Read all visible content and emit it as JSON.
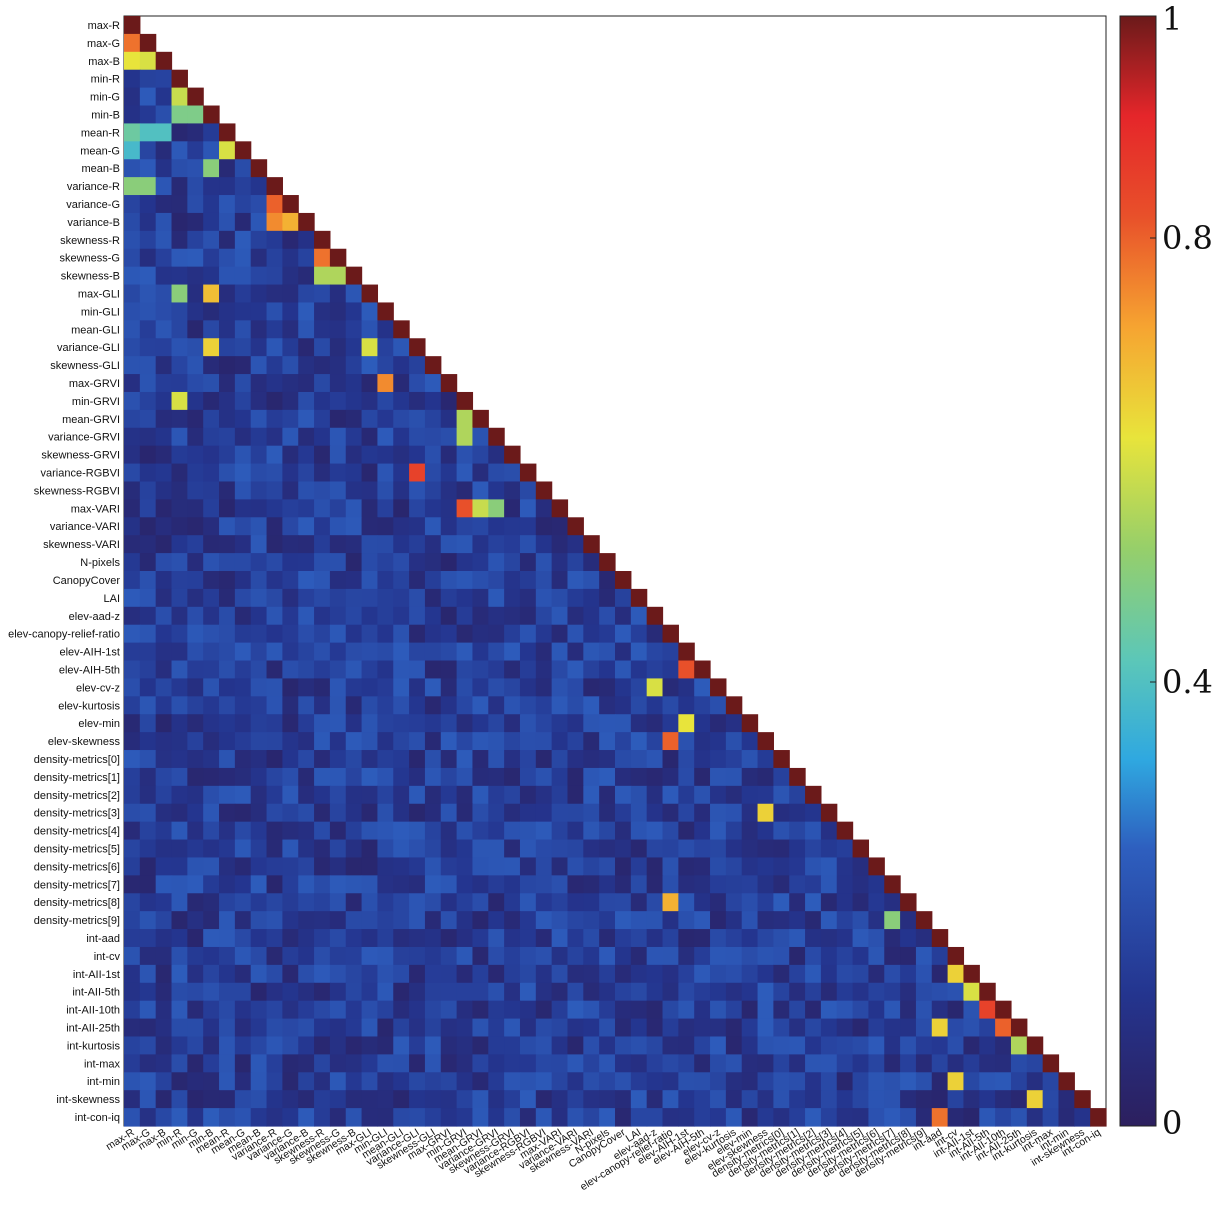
{
  "chart_data": {
    "type": "heatmap",
    "title": "",
    "xlabel": "",
    "ylabel": "",
    "variables": [
      "max-R",
      "max-G",
      "max-B",
      "min-R",
      "min-G",
      "min-B",
      "mean-R",
      "mean-G",
      "mean-B",
      "variance-R",
      "variance-G",
      "variance-B",
      "skewness-R",
      "skewness-G",
      "skewness-B",
      "max-GLI",
      "min-GLI",
      "mean-GLI",
      "variance-GLI",
      "skewness-GLI",
      "max-GRVI",
      "min-GRVI",
      "mean-GRVI",
      "variance-GRVI",
      "skewness-GRVI",
      "variance-RGBVI",
      "skewness-RGBVI",
      "max-VARI",
      "variance-VARI",
      "skewness-VARI",
      "N-pixels",
      "CanopyCover",
      "LAI",
      "elev-aad-z",
      "elev-canopy-relief-ratio",
      "elev-AIH-1st",
      "elev-AIH-5th",
      "elev-cv-z",
      "elev-kurtosis",
      "elev-min",
      "elev-skewness",
      "density-metrics[0]",
      "density-metrics[1]",
      "density-metrics[2]",
      "density-metrics[3]",
      "density-metrics[4]",
      "density-metrics[5]",
      "density-metrics[6]",
      "density-metrics[7]",
      "density-metrics[8]",
      "density-metrics[9]",
      "int-aad",
      "int-cv",
      "int-AII-1st",
      "int-AII-5th",
      "int-AII-10th",
      "int-AII-25th",
      "int-kurtosis",
      "int-max",
      "int-min",
      "int-skewness",
      "int-con-iq"
    ],
    "matrix_shape": "lower-triangular",
    "diagonal_value": 1,
    "notable_values": [
      {
        "row": "max-G",
        "col": "max-R",
        "value": 0.78
      },
      {
        "row": "max-B",
        "col": "max-R",
        "value": 0.62
      },
      {
        "row": "max-B",
        "col": "max-G",
        "value": 0.6
      },
      {
        "row": "min-G",
        "col": "min-R",
        "value": 0.58
      },
      {
        "row": "min-B",
        "col": "min-R",
        "value": 0.48
      },
      {
        "row": "min-B",
        "col": "min-G",
        "value": 0.48
      },
      {
        "row": "mean-R",
        "col": "max-R",
        "value": 0.45
      },
      {
        "row": "mean-R",
        "col": "max-G",
        "value": 0.4
      },
      {
        "row": "mean-R",
        "col": "max-B",
        "value": 0.4
      },
      {
        "row": "mean-G",
        "col": "max-R",
        "value": 0.38
      },
      {
        "row": "mean-G",
        "col": "mean-R",
        "value": 0.6
      },
      {
        "row": "mean-B",
        "col": "min-B",
        "value": 0.5
      },
      {
        "row": "variance-R",
        "col": "max-R",
        "value": 0.5
      },
      {
        "row": "variance-R",
        "col": "max-G",
        "value": 0.5
      },
      {
        "row": "variance-G",
        "col": "variance-R",
        "value": 0.8
      },
      {
        "row": "variance-B",
        "col": "variance-R",
        "value": 0.75
      },
      {
        "row": "variance-B",
        "col": "variance-G",
        "value": 0.7
      },
      {
        "row": "skewness-G",
        "col": "skewness-R",
        "value": 0.78
      },
      {
        "row": "skewness-B",
        "col": "skewness-R",
        "value": 0.55
      },
      {
        "row": "skewness-B",
        "col": "skewness-G",
        "value": 0.55
      },
      {
        "row": "max-GLI",
        "col": "min-B",
        "value": 0.68
      },
      {
        "row": "max-GLI",
        "col": "min-R",
        "value": 0.5
      },
      {
        "row": "variance-GLI",
        "col": "max-GLI",
        "value": 0.6
      },
      {
        "row": "variance-GLI",
        "col": "min-B",
        "value": 0.65
      },
      {
        "row": "max-GRVI",
        "col": "min-GLI",
        "value": 0.75
      },
      {
        "row": "min-GRVI",
        "col": "min-R",
        "value": 0.6
      },
      {
        "row": "mean-GRVI",
        "col": "min-GRVI",
        "value": 0.55
      },
      {
        "row": "variance-GRVI",
        "col": "min-GRVI",
        "value": 0.55
      },
      {
        "row": "variance-RGBVI",
        "col": "variance-GLI",
        "value": 0.85
      },
      {
        "row": "max-VARI",
        "col": "min-GRVI",
        "value": 0.82
      },
      {
        "row": "max-VARI",
        "col": "mean-GRVI",
        "value": 0.58
      },
      {
        "row": "max-VARI",
        "col": "variance-GRVI",
        "value": 0.5
      },
      {
        "row": "elev-AIH-5th",
        "col": "elev-AIH-1st",
        "value": 0.82
      },
      {
        "row": "elev-cv-z",
        "col": "elev-aad-z",
        "value": 0.6
      },
      {
        "row": "elev-min",
        "col": "elev-AIH-1st",
        "value": 0.62
      },
      {
        "row": "elev-skewness",
        "col": "elev-canopy-relief-ratio",
        "value": 0.8
      },
      {
        "row": "density-metrics[3]",
        "col": "elev-skewness",
        "value": 0.65
      },
      {
        "row": "density-metrics[8]",
        "col": "elev-canopy-relief-ratio",
        "value": 0.7
      },
      {
        "row": "density-metrics[9]",
        "col": "density-metrics[7]",
        "value": 0.5
      },
      {
        "row": "int-AII-1st",
        "col": "int-cv",
        "value": 0.65
      },
      {
        "row": "int-AII-5th",
        "col": "int-AII-1st",
        "value": 0.6
      },
      {
        "row": "int-AII-10th",
        "col": "int-AII-5th",
        "value": 0.85
      },
      {
        "row": "int-AII-25th",
        "col": "int-AII-10th",
        "value": 0.8
      },
      {
        "row": "int-AII-25th",
        "col": "int-aad",
        "value": 0.65
      },
      {
        "row": "int-kurtosis",
        "col": "int-AII-25th",
        "value": 0.55
      },
      {
        "row": "int-min",
        "col": "int-cv",
        "value": 0.65
      },
      {
        "row": "int-skewness",
        "col": "int-kurtosis",
        "value": 0.65
      },
      {
        "row": "int-con-iq",
        "col": "int-aad",
        "value": 0.78
      }
    ],
    "colorbar": {
      "range": [
        0,
        1
      ],
      "ticks": [
        "0",
        "0.4",
        "0.8",
        "1"
      ],
      "colormap": "jet"
    }
  }
}
